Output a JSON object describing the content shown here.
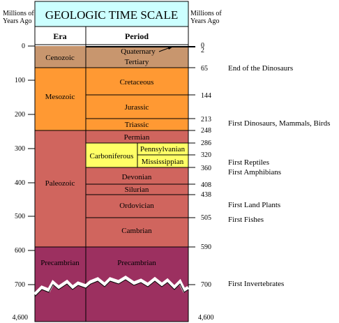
{
  "header": {
    "title": "GEOLOGIC TIME SCALE",
    "left_label": [
      "Millions of",
      "Years Ago"
    ],
    "right_label": [
      "Millions of",
      "Years Ago"
    ],
    "era_heading": "Era",
    "period_heading": "Period"
  },
  "eras": [
    {
      "name": "Cenozoic",
      "start": 0,
      "end": 65,
      "color": "#c8966e"
    },
    {
      "name": "Mesozoic",
      "start": 65,
      "end": 248,
      "color": "#ff9933"
    },
    {
      "name": "Paleozoic",
      "start": 248,
      "end": 590,
      "color": "#d0655e"
    },
    {
      "name": "Precambrian",
      "start": 590,
      "end": 4600,
      "color": "#9c3060"
    }
  ],
  "periods": [
    {
      "name": "Quaternary",
      "start": 0,
      "end": 2
    },
    {
      "name": "Tertiary",
      "start": 2,
      "end": 65
    },
    {
      "name": "Cretaceous",
      "start": 65,
      "end": 144
    },
    {
      "name": "Jurassic",
      "start": 144,
      "end": 213
    },
    {
      "name": "Triassic",
      "start": 213,
      "end": 248
    },
    {
      "name": "Permian",
      "start": 248,
      "end": 286
    },
    {
      "name": "Carboniferous",
      "start": 286,
      "end": 360,
      "color": "#ffff66",
      "subperiods": [
        {
          "name": "Pennsylvanian",
          "start": 286,
          "end": 320
        },
        {
          "name": "Mississippian",
          "start": 320,
          "end": 360
        }
      ]
    },
    {
      "name": "Devonian",
      "start": 360,
      "end": 408
    },
    {
      "name": "Silurian",
      "start": 408,
      "end": 438
    },
    {
      "name": "Ordovician",
      "start": 438,
      "end": 505
    },
    {
      "name": "Cambrian",
      "start": 505,
      "end": 590
    },
    {
      "name": "Precambrian",
      "start": 590,
      "end": 4600
    }
  ],
  "left_ticks": [
    "0",
    "100",
    "200",
    "300",
    "400",
    "500",
    "600",
    "700",
    "4,600"
  ],
  "right_ticks": [
    "0",
    "2",
    "65",
    "144",
    "213",
    "248",
    "286",
    "320",
    "360",
    "408",
    "438",
    "505",
    "590",
    "700",
    "4,600"
  ],
  "events": [
    {
      "text": "End of the Dinosaurs",
      "at": 65
    },
    {
      "text": "First Dinosaurs, Mammals, Birds",
      "at": 213
    },
    {
      "text": "First Reptiles",
      "at": 320
    },
    {
      "text": "First Amphibians",
      "at": 350
    },
    {
      "text": "First Land Plants",
      "at": 438
    },
    {
      "text": "First Fishes",
      "at": 510
    },
    {
      "text": "First Invertebrates",
      "at": 700
    }
  ],
  "colors": {
    "header_bg": "#ccffff",
    "line": "#000000"
  }
}
